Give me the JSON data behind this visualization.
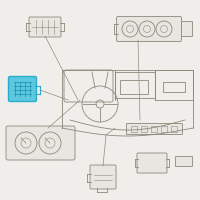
{
  "bg_color": "#f0eeea",
  "line_color": "#8a8a7a",
  "highlight_color": "#2aaccf",
  "highlight_fill": "#5bc8e0",
  "line_width": 0.6,
  "fig_width": 2.0,
  "fig_height": 2.0,
  "dpi": 100
}
